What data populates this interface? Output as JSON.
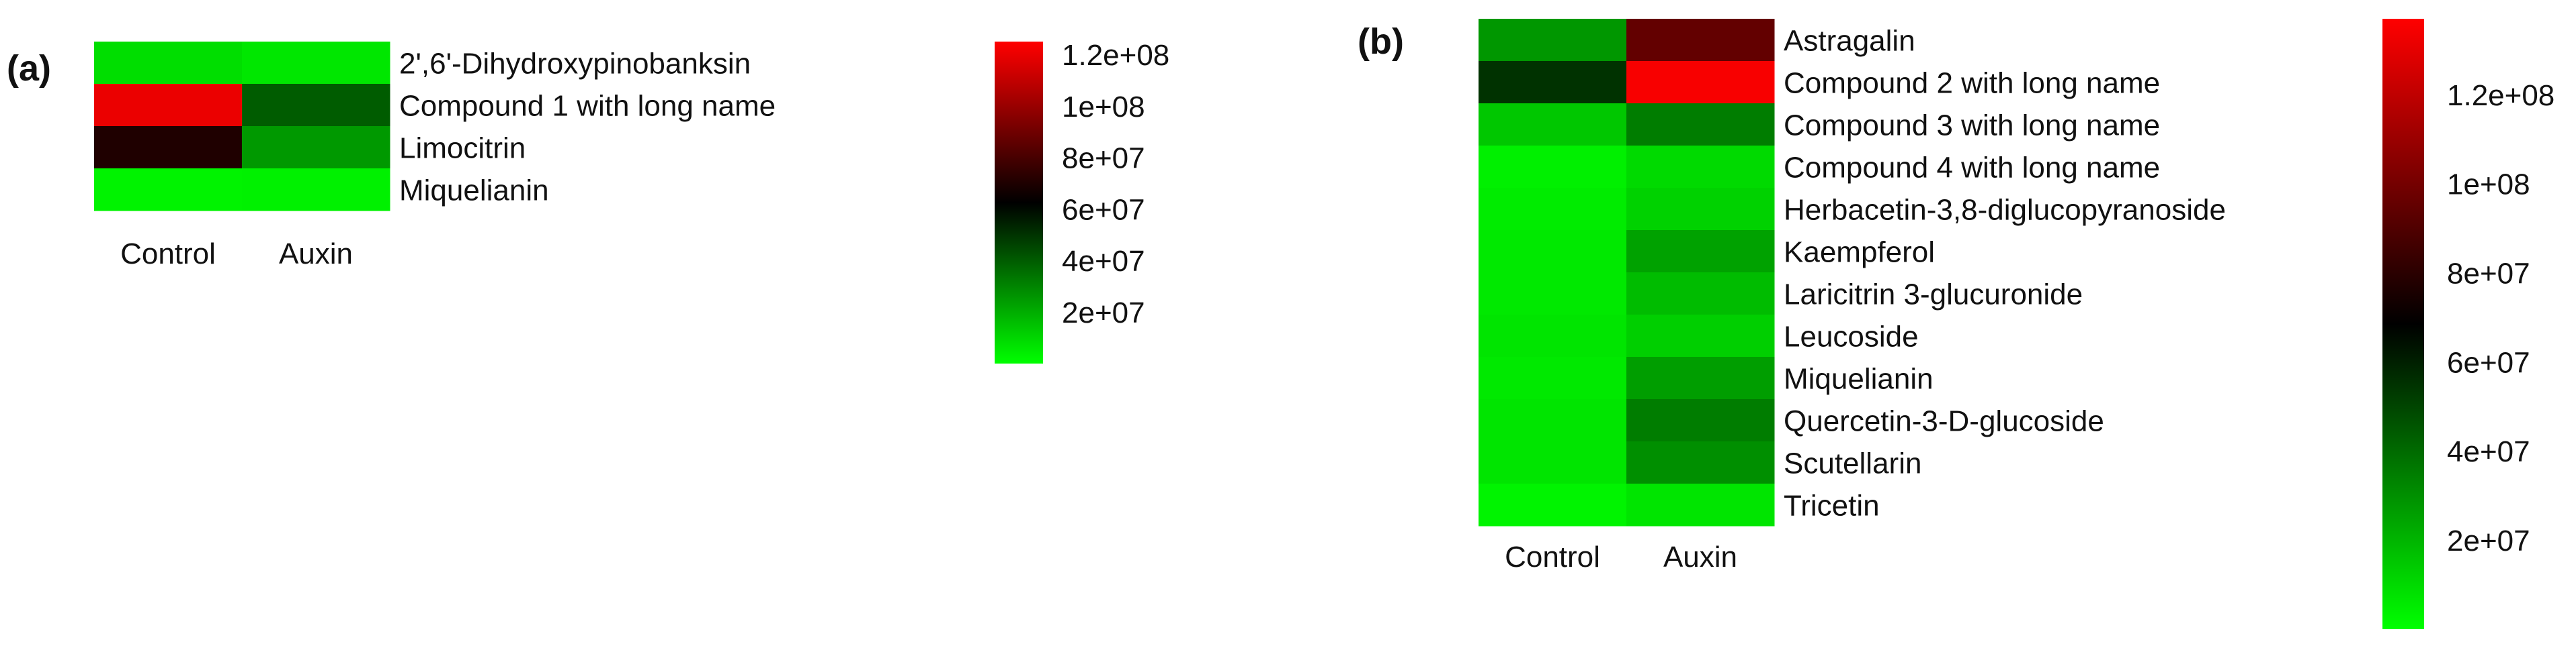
{
  "chart_data": [
    {
      "type": "heatmap",
      "panel_label": "(a)",
      "columns": [
        "Control",
        "Auxin"
      ],
      "rows": [
        "2',6'-Dihydroxypinobanksin",
        "Compound 1 with long name",
        "Limocitrin",
        "Miquelianin"
      ],
      "values": [
        [
          8000000,
          6000000
        ],
        [
          120000000,
          40000000
        ],
        [
          70000000,
          25000000
        ],
        [
          3000000,
          3500000
        ]
      ],
      "colorbar": {
        "ticks": [
          20000000,
          40000000,
          60000000,
          80000000,
          100000000,
          120000000
        ],
        "tick_labels": [
          "2e+07",
          "4e+07",
          "6e+07",
          "8e+07",
          "1e+08",
          "1.2e+08"
        ],
        "range": [
          0,
          125000000
        ],
        "colors": [
          "#00ff00",
          "#000000",
          "#ff0000"
        ],
        "mid_value": 62500000
      }
    },
    {
      "type": "heatmap",
      "panel_label": "(b)",
      "columns": [
        "Control",
        "Auxin"
      ],
      "rows": [
        "Astragalin",
        "Compound 2 with long name",
        "Compound 3 with long name",
        "Compound 4 with long name",
        "Herbacetin-3,8-diglucopyranoside",
        "Kaempferol",
        "Laricitrin 3-glucuronide",
        "Leucoside",
        "Miquelianin",
        "Quercetin-3-D-glucoside",
        "Scutellarin",
        "Tricetin"
      ],
      "values": [
        [
          28000000,
          95000000
        ],
        [
          55000000,
          135000000
        ],
        [
          15000000,
          35000000
        ],
        [
          4000000,
          10000000
        ],
        [
          5000000,
          12000000
        ],
        [
          6000000,
          25000000
        ],
        [
          6000000,
          18000000
        ],
        [
          7000000,
          13000000
        ],
        [
          6000000,
          26000000
        ],
        [
          7000000,
          35000000
        ],
        [
          7000000,
          30000000
        ],
        [
          3000000,
          7000000
        ]
      ],
      "colorbar": {
        "ticks": [
          20000000,
          40000000,
          60000000,
          80000000,
          100000000,
          120000000
        ],
        "tick_labels": [
          "2e+07",
          "4e+07",
          "6e+07",
          "8e+07",
          "1e+08",
          "1.2e+08"
        ],
        "range": [
          0,
          137000000
        ],
        "colors": [
          "#00ff00",
          "#000000",
          "#ff0000"
        ],
        "mid_value": 68500000
      }
    }
  ]
}
